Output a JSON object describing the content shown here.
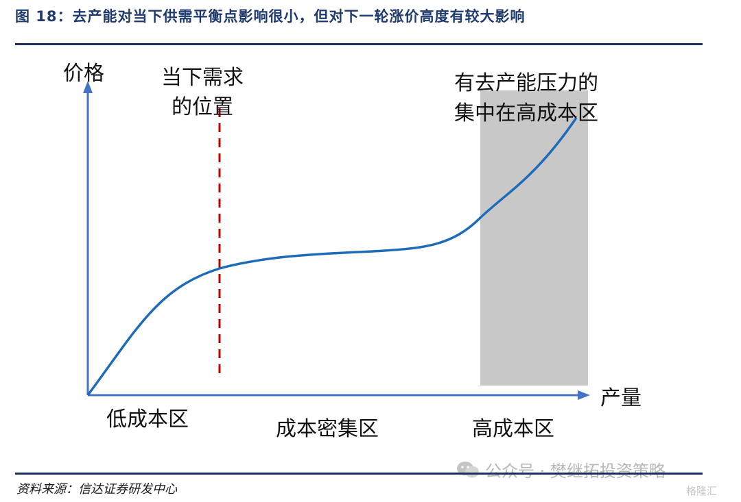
{
  "figure": {
    "title": "图 18：去产能对当下供需平衡点影响很小，但对下一轮涨价高度有较大影响",
    "source": "资料来源：信达证券研发中心",
    "watermark_text": "公众号 · 樊继拓投资策略",
    "corner_mark": "格隆汇"
  },
  "chart_data": {
    "type": "line",
    "title": "",
    "xlabel": "产量",
    "ylabel": "价格",
    "x_regions": [
      "低成本区",
      "成本密集区",
      "高成本区"
    ],
    "annotations": [
      {
        "text_lines": [
          "当下需求",
          "的位置"
        ],
        "marker": "red-dashed-vertical-line"
      },
      {
        "text_lines": [
          "有去产能压力的",
          "集中在高成本区"
        ],
        "marker": "gray-shaded-band"
      }
    ],
    "series": [
      {
        "values_shape": "rising-then-flat-then-rising supply curve",
        "color": "#1e6bb8"
      }
    ],
    "colors": {
      "axis": "#4472c4",
      "curve": "#1e6bb8",
      "demand_line": "#c00000",
      "shaded_band": "#c8c8c8",
      "title": "#1f3a6e"
    },
    "grid": false,
    "legend": "none"
  }
}
